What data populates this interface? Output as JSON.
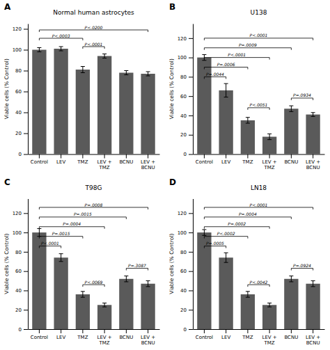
{
  "chart_data": [
    {
      "type": "bar",
      "label": "A",
      "title": "Normal human astrocytes",
      "ylabel": "Viable cells (% Control)",
      "categories": [
        "Control",
        "LEV",
        "TMZ",
        "LEV +\nTMZ",
        "BCNU",
        "LEV +\nBCNU"
      ],
      "values": [
        100,
        101,
        81,
        94,
        78,
        77
      ],
      "errors": [
        2,
        2,
        3,
        2,
        2,
        2
      ],
      "color": "#5a5a5a",
      "ylim": [
        0,
        125
      ],
      "yticks": [
        0,
        20,
        40,
        60,
        80,
        100,
        120
      ],
      "grid": false,
      "significance_brackets": [
        {
          "x1": 0,
          "x2": 2,
          "y": 111,
          "label": "P<.0003"
        },
        {
          "x1": 0,
          "x2": 5,
          "y": 119,
          "label": "P<.0200"
        },
        {
          "x1": 2,
          "x2": 3,
          "y": 103,
          "label": "P<.0001"
        }
      ]
    },
    {
      "type": "bar",
      "label": "B",
      "title": "U138",
      "ylabel": "Viable cells (% Control)",
      "categories": [
        "Control",
        "LEV",
        "TMZ",
        "LEV +\nTMZ",
        "BCNU",
        "LEV +\nBCNU"
      ],
      "values": [
        100,
        66,
        35,
        18,
        47,
        41
      ],
      "errors": [
        3,
        7,
        3,
        3,
        3,
        2
      ],
      "color": "#5a5a5a",
      "ylim": [
        0,
        135
      ],
      "yticks": [
        0,
        20,
        40,
        60,
        80,
        100,
        120
      ],
      "grid": false,
      "significance_brackets": [
        {
          "x1": 0,
          "x2": 1,
          "y": 80,
          "label": "P=.0044"
        },
        {
          "x1": 0,
          "x2": 2,
          "y": 90,
          "label": "P=.0006"
        },
        {
          "x1": 0,
          "x2": 3,
          "y": 100,
          "label": "P<.0001"
        },
        {
          "x1": 0,
          "x2": 4,
          "y": 110,
          "label": "P=.0009"
        },
        {
          "x1": 0,
          "x2": 5,
          "y": 120,
          "label": "P<.0001"
        },
        {
          "x1": 2,
          "x2": 3,
          "y": 48,
          "label": "P<.0051"
        },
        {
          "x1": 4,
          "x2": 5,
          "y": 58,
          "label": "P=.0934"
        }
      ]
    },
    {
      "type": "bar",
      "label": "C",
      "title": "T98G",
      "ylabel": "Viable cells (% Control)",
      "categories": [
        "Control",
        "LEV",
        "TMZ",
        "LEV +\nTMZ",
        "BCNU",
        "LEV +\nBCNU"
      ],
      "values": [
        100,
        74,
        36,
        25,
        52,
        47
      ],
      "errors": [
        4,
        4,
        3,
        2,
        3,
        3
      ],
      "color": "#5a5a5a",
      "ylim": [
        0,
        135
      ],
      "yticks": [
        0,
        20,
        40,
        60,
        80,
        100,
        120
      ],
      "grid": false,
      "significance_brackets": [
        {
          "x1": 0,
          "x2": 1,
          "y": 86,
          "label": "P<.0001"
        },
        {
          "x1": 0,
          "x2": 2,
          "y": 96,
          "label": "P=.0015"
        },
        {
          "x1": 0,
          "x2": 3,
          "y": 106,
          "label": "P=.0004"
        },
        {
          "x1": 0,
          "x2": 4,
          "y": 116,
          "label": "P=.0015"
        },
        {
          "x1": 0,
          "x2": 5,
          "y": 126,
          "label": "P=.0008"
        },
        {
          "x1": 2,
          "x2": 3,
          "y": 46,
          "label": "P<.0069"
        },
        {
          "x1": 4,
          "x2": 5,
          "y": 63,
          "label": "P=.3087"
        }
      ]
    },
    {
      "type": "bar",
      "label": "D",
      "title": "LN18",
      "ylabel": "Viable cells (% Control)",
      "categories": [
        "Control",
        "LEV",
        "TMZ",
        "LEV +\nTMZ",
        "BCNU",
        "LEV +\nBCNU"
      ],
      "values": [
        100,
        74,
        36,
        25,
        52,
        47
      ],
      "errors": [
        3,
        5,
        3,
        2,
        3,
        3
      ],
      "color": "#5a5a5a",
      "ylim": [
        0,
        135
      ],
      "yticks": [
        0,
        20,
        40,
        60,
        80,
        100,
        120
      ],
      "grid": false,
      "significance_brackets": [
        {
          "x1": 0,
          "x2": 1,
          "y": 86,
          "label": "P=.0005"
        },
        {
          "x1": 0,
          "x2": 2,
          "y": 96,
          "label": "P<.0002"
        },
        {
          "x1": 0,
          "x2": 3,
          "y": 106,
          "label": "P=.0002"
        },
        {
          "x1": 0,
          "x2": 4,
          "y": 116,
          "label": "P=.0004"
        },
        {
          "x1": 0,
          "x2": 5,
          "y": 126,
          "label": "P<.0001"
        },
        {
          "x1": 2,
          "x2": 3,
          "y": 46,
          "label": "P<.0042"
        },
        {
          "x1": 4,
          "x2": 5,
          "y": 63,
          "label": "P=.0924"
        }
      ]
    }
  ]
}
